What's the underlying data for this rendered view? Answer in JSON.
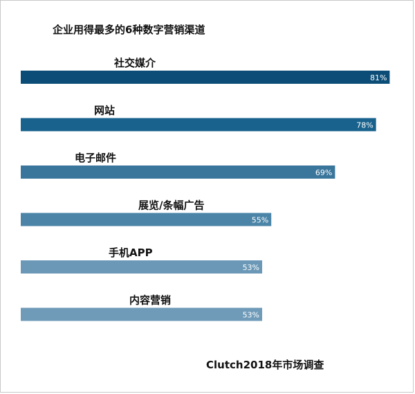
{
  "chart_data": {
    "type": "bar",
    "orientation": "horizontal",
    "title": "企业用得最多的6种数字营销渠道",
    "categories": [
      "社交媒介",
      "网站",
      "电子邮件",
      "展览/条幅广告",
      "手机APP",
      "内容营销"
    ],
    "values": [
      81,
      78,
      69,
      55,
      53,
      53
    ],
    "value_labels": [
      "81%",
      "78%",
      "69%",
      "55%",
      "53%",
      "53%"
    ],
    "unit": "%",
    "xlim": [
      0,
      82
    ],
    "xlabel": "",
    "ylabel": "",
    "grid": false,
    "legend": "none",
    "colors": [
      "#0b4d77",
      "#19628d",
      "#3a759b",
      "#4b84a7",
      "#6a98b6",
      "#6f9bb9"
    ]
  },
  "source": "Clutch2018年市场调查"
}
